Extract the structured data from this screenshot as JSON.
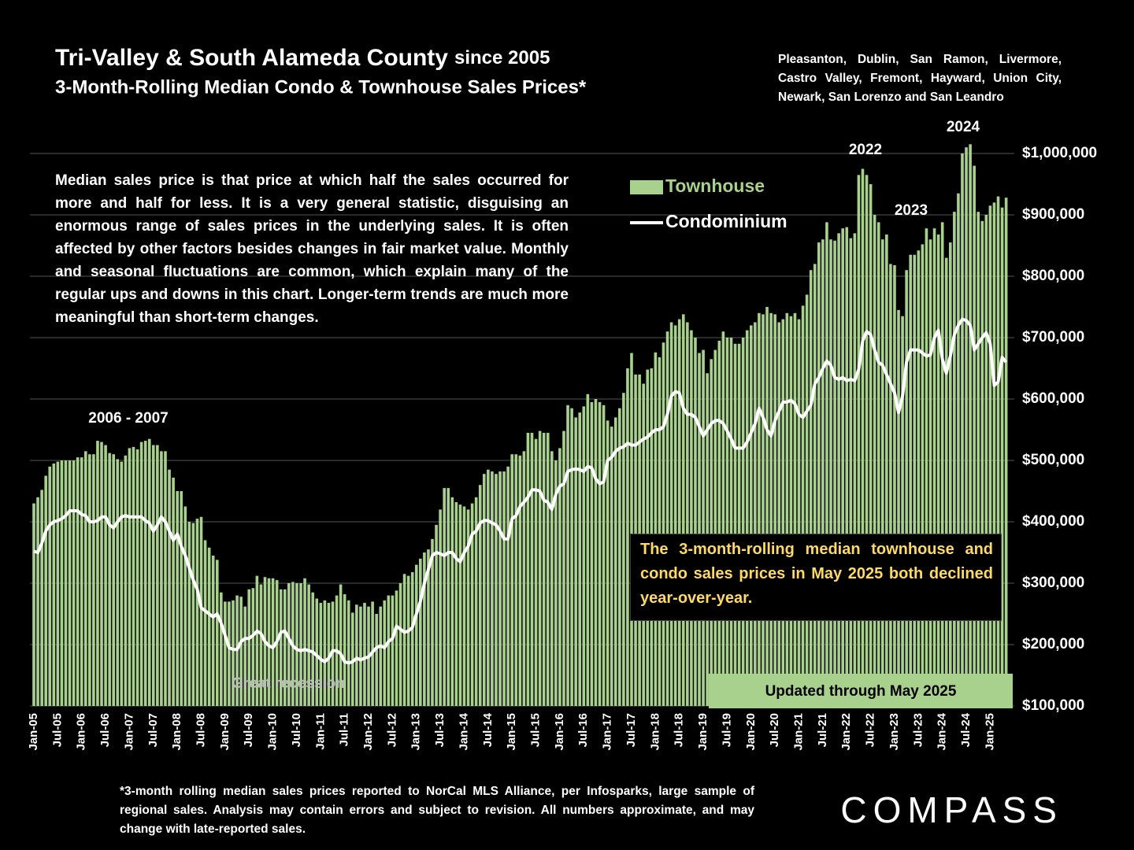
{
  "chart_data": {
    "type": "bar_line",
    "title": "Tri-Valley & South Alameda County",
    "title_suffix": "since 2005",
    "subtitle": "3-Month-Rolling Median Condo & Townhouse Sales Prices*",
    "region": "Pleasanton, Dublin, San Ramon, Livermore, Castro Valley, Fremont, Hayward, Union City, Newark, San Lorenzo and San Leandro",
    "description": "Median sales price is that price at which half the sales occurred for more and half for less. It is a very general statistic, disguising an enormous range of sales prices in the underlying sales. It is often affected by other factors besides changes in fair market value. Monthly and seasonal fluctuations are common, which explain many of the regular ups and downs in this chart. Longer-term trends are much more meaningful than short-term changes.",
    "callout": "The 3-month-rolling median townhouse and condo sales prices in May 2025 both declined year-over-year.",
    "updated": "Updated through May 2025",
    "annotations": [
      "2006 - 2007",
      "Great recession",
      "2022",
      "2023",
      "2024"
    ],
    "footnote": "*3-month rolling median sales prices reported to NorCal MLS Alliance, per Infosparks, large sample of regional sales. Analysis may contain errors and subject to revision. All numbers approximate, and may change with late-reported sales.",
    "logo": "COMPASS",
    "ylim": [
      100000,
      1000000
    ],
    "yticks": [
      {
        "value": 100000,
        "label": "$100,000"
      },
      {
        "value": 200000,
        "label": "$200,000"
      },
      {
        "value": 300000,
        "label": "$300,000"
      },
      {
        "value": 400000,
        "label": "$400,000"
      },
      {
        "value": 500000,
        "label": "$500,000"
      },
      {
        "value": 600000,
        "label": "$600,000"
      },
      {
        "value": 700000,
        "label": "$700,000"
      },
      {
        "value": 800000,
        "label": "$800,000"
      },
      {
        "value": 900000,
        "label": "$900,000"
      },
      {
        "value": 1000000,
        "label": "$1,000,000"
      }
    ],
    "grid": true,
    "categories": [
      "Jan-05",
      null,
      null,
      null,
      null,
      null,
      "Jul-05",
      null,
      null,
      null,
      null,
      null,
      "Jan-06",
      null,
      null,
      null,
      null,
      null,
      "Jul-06",
      null,
      null,
      null,
      null,
      null,
      "Jan-07",
      null,
      null,
      null,
      null,
      null,
      "Jul-07",
      null,
      null,
      null,
      null,
      null,
      "Jan-08",
      null,
      null,
      null,
      null,
      null,
      "Jul-08",
      null,
      null,
      null,
      null,
      null,
      "Jan-09",
      null,
      null,
      null,
      null,
      null,
      "Jul-09",
      null,
      null,
      null,
      null,
      null,
      "Jan-10",
      null,
      null,
      null,
      null,
      null,
      "Jul-10",
      null,
      null,
      null,
      null,
      null,
      "Jan-11",
      null,
      null,
      null,
      null,
      null,
      "Jul-11",
      null,
      null,
      null,
      null,
      null,
      "Jan-12",
      null,
      null,
      null,
      null,
      null,
      "Jul-12",
      null,
      null,
      null,
      null,
      null,
      "Jan-13",
      null,
      null,
      null,
      null,
      null,
      "Jul-13",
      null,
      null,
      null,
      null,
      null,
      "Jan-14",
      null,
      null,
      null,
      null,
      null,
      "Jul-14",
      null,
      null,
      null,
      null,
      null,
      "Jan-15",
      null,
      null,
      null,
      null,
      null,
      "Jul-15",
      null,
      null,
      null,
      null,
      null,
      "Jan-16",
      null,
      null,
      null,
      null,
      null,
      "Jul-16",
      null,
      null,
      null,
      null,
      null,
      "Jan-17",
      null,
      null,
      null,
      null,
      null,
      "Jul-17",
      null,
      null,
      null,
      null,
      null,
      "Jan-18",
      null,
      null,
      null,
      null,
      null,
      "Jul-18",
      null,
      null,
      null,
      null,
      null,
      "Jan-19",
      null,
      null,
      null,
      null,
      null,
      "Jul-19",
      null,
      null,
      null,
      null,
      null,
      "Jan-20",
      null,
      null,
      null,
      null,
      null,
      "Jul-20",
      null,
      null,
      null,
      null,
      null,
      "Jan-21",
      null,
      null,
      null,
      null,
      null,
      "Jul-21",
      null,
      null,
      null,
      null,
      null,
      "Jan-22",
      null,
      null,
      null,
      null,
      null,
      "Jul-22",
      null,
      null,
      null,
      null,
      null,
      "Jan-23",
      null,
      null,
      null,
      null,
      null,
      "Jul-23",
      null,
      null,
      null,
      null,
      null,
      "Jan-24",
      null,
      null,
      null,
      null,
      null,
      "Jul-24",
      null,
      null,
      null,
      null,
      null,
      "Jan-25",
      null,
      null,
      null,
      null
    ],
    "series": [
      {
        "name": "Townhouse",
        "color": "#a9d18e",
        "kind": "bar",
        "values": [
          430000,
          440000,
          452000,
          475000,
          490000,
          495000,
          498000,
          500000,
          500000,
          500000,
          500000,
          505000,
          505000,
          515000,
          510000,
          510000,
          532000,
          530000,
          525000,
          512000,
          510000,
          502000,
          498000,
          508000,
          520000,
          522000,
          518000,
          530000,
          532000,
          535000,
          525000,
          525000,
          515000,
          515000,
          485000,
          472000,
          450000,
          450000,
          425000,
          400000,
          398000,
          405000,
          408000,
          370000,
          358000,
          345000,
          338000,
          285000,
          270000,
          270000,
          272000,
          280000,
          278000,
          262000,
          290000,
          292000,
          312000,
          298000,
          310000,
          308000,
          308000,
          305000,
          290000,
          290000,
          300000,
          302000,
          300000,
          300000,
          308000,
          298000,
          285000,
          275000,
          268000,
          272000,
          268000,
          270000,
          280000,
          298000,
          282000,
          272000,
          252000,
          265000,
          262000,
          268000,
          262000,
          270000,
          250000,
          262000,
          272000,
          280000,
          280000,
          288000,
          300000,
          315000,
          312000,
          318000,
          330000,
          340000,
          350000,
          355000,
          372000,
          395000,
          420000,
          455000,
          455000,
          440000,
          432000,
          428000,
          425000,
          420000,
          430000,
          440000,
          460000,
          478000,
          485000,
          482000,
          478000,
          482000,
          482000,
          490000,
          510000,
          510000,
          508000,
          515000,
          545000,
          545000,
          535000,
          548000,
          545000,
          545000,
          515000,
          500000,
          520000,
          548000,
          590000,
          585000,
          570000,
          578000,
          588000,
          608000,
          595000,
          600000,
          595000,
          590000,
          565000,
          555000,
          570000,
          585000,
          610000,
          650000,
          675000,
          640000,
          640000,
          625000,
          648000,
          650000,
          676000,
          668000,
          692000,
          710000,
          725000,
          720000,
          730000,
          738000,
          725000,
          712000,
          700000,
          675000,
          680000,
          642000,
          665000,
          680000,
          695000,
          710000,
          700000,
          700000,
          690000,
          690000,
          700000,
          712000,
          720000,
          725000,
          740000,
          738000,
          750000,
          740000,
          738000,
          725000,
          730000,
          740000,
          735000,
          740000,
          730000,
          752000,
          770000,
          810000,
          820000,
          855000,
          860000,
          888000,
          860000,
          858000,
          870000,
          878000,
          880000,
          862000,
          870000,
          965000,
          975000,
          965000,
          950000,
          900000,
          888000,
          860000,
          868000,
          820000,
          818000,
          745000,
          735000,
          810000,
          835000,
          835000,
          842000,
          852000,
          878000,
          860000,
          878000,
          868000,
          888000,
          830000,
          855000,
          905000,
          935000,
          1000000,
          1010000,
          1015000,
          980000,
          905000,
          890000,
          900000,
          915000,
          920000,
          930000,
          912000,
          928000
        ]
      },
      {
        "name": "Condominium",
        "color": "#ffffff",
        "kind": "line",
        "values": [
          352000,
          350000,
          365000,
          385000,
          395000,
          400000,
          402000,
          405000,
          410000,
          418000,
          418000,
          418000,
          412000,
          410000,
          400000,
          400000,
          402000,
          408000,
          408000,
          395000,
          390000,
          400000,
          408000,
          410000,
          408000,
          408000,
          408000,
          408000,
          402000,
          398000,
          385000,
          395000,
          408000,
          400000,
          385000,
          370000,
          380000,
          360000,
          345000,
          325000,
          305000,
          290000,
          260000,
          255000,
          250000,
          245000,
          250000,
          235000,
          215000,
          195000,
          192000,
          192000,
          205000,
          210000,
          210000,
          215000,
          222000,
          218000,
          205000,
          198000,
          195000,
          205000,
          220000,
          222000,
          210000,
          198000,
          192000,
          190000,
          192000,
          190000,
          188000,
          182000,
          176000,
          172000,
          178000,
          190000,
          190000,
          185000,
          172000,
          170000,
          172000,
          178000,
          175000,
          178000,
          180000,
          188000,
          195000,
          198000,
          195000,
          205000,
          210000,
          230000,
          225000,
          220000,
          222000,
          228000,
          250000,
          270000,
          300000,
          322000,
          345000,
          350000,
          348000,
          345000,
          350000,
          350000,
          340000,
          335000,
          350000,
          360000,
          380000,
          385000,
          398000,
          402000,
          402000,
          398000,
          395000,
          385000,
          372000,
          372000,
          405000,
          410000,
          425000,
          432000,
          440000,
          452000,
          452000,
          450000,
          435000,
          432000,
          420000,
          445000,
          458000,
          462000,
          482000,
          485000,
          486000,
          485000,
          482000,
          490000,
          488000,
          470000,
          462000,
          465000,
          500000,
          505000,
          515000,
          520000,
          522000,
          528000,
          525000,
          525000,
          530000,
          535000,
          538000,
          545000,
          550000,
          550000,
          555000,
          575000,
          605000,
          612000,
          610000,
          585000,
          575000,
          575000,
          570000,
          555000,
          540000,
          550000,
          560000,
          565000,
          565000,
          560000,
          548000,
          535000,
          520000,
          520000,
          520000,
          530000,
          545000,
          560000,
          585000,
          570000,
          550000,
          540000,
          565000,
          580000,
          595000,
          595000,
          598000,
          592000,
          575000,
          570000,
          580000,
          590000,
          625000,
          635000,
          650000,
          662000,
          655000,
          635000,
          632000,
          635000,
          630000,
          632000,
          630000,
          648000,
          695000,
          710000,
          705000,
          680000,
          660000,
          655000,
          640000,
          625000,
          610000,
          578000,
          605000,
          660000,
          680000,
          680000,
          680000,
          675000,
          670000,
          672000,
          700000,
          712000,
          665000,
          642000,
          670000,
          705000,
          720000,
          730000,
          728000,
          720000,
          680000,
          690000,
          700000,
          708000,
          690000,
          622000,
          628000,
          668000,
          660000
        ]
      }
    ]
  }
}
